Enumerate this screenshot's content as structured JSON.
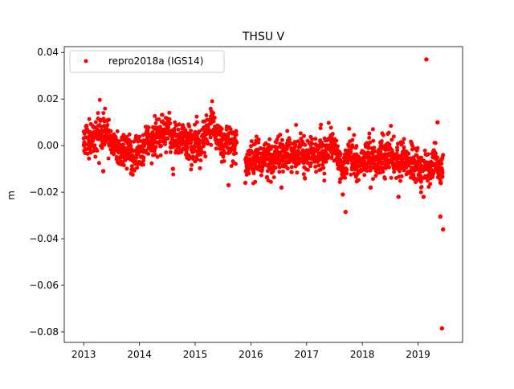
{
  "chart_data": {
    "type": "scatter",
    "title": "THSU V",
    "xlabel": "",
    "ylabel": "m",
    "xlim": [
      2012.65,
      2019.8
    ],
    "ylim": [
      -0.0845,
      0.0425
    ],
    "x_ticks": [
      2013,
      2014,
      2015,
      2016,
      2017,
      2018,
      2019
    ],
    "x_tick_labels": [
      "2013",
      "2014",
      "2015",
      "2016",
      "2017",
      "2018",
      "2019"
    ],
    "y_ticks": [
      0.04,
      0.02,
      0.0,
      -0.02,
      -0.04,
      -0.06,
      -0.08
    ],
    "y_tick_labels": [
      "0.04",
      "0.02",
      "0.00",
      "−0.02",
      "−0.04",
      "−0.06",
      "−0.08"
    ],
    "legend_position": "top-left",
    "grid": false,
    "series": [
      {
        "name": "repro2018a (IGS14)",
        "color": "#ff0000",
        "marker": "circle",
        "x": [
          2013.0,
          2013.05,
          2013.1,
          2013.15,
          2013.2,
          2013.25,
          2013.3,
          2013.35,
          2013.4,
          2013.45,
          2013.5,
          2013.55,
          2013.6,
          2013.65,
          2013.7,
          2013.75,
          2013.8,
          2013.85,
          2013.9,
          2013.95,
          2014.0,
          2014.05,
          2014.1,
          2014.15,
          2014.2,
          2014.25,
          2014.3,
          2014.35,
          2014.4,
          2014.45,
          2014.5,
          2014.55,
          2014.6,
          2014.65,
          2014.7,
          2014.75,
          2014.8,
          2014.85,
          2014.9,
          2014.95,
          2015.0,
          2015.05,
          2015.1,
          2015.15,
          2015.2,
          2015.25,
          2015.3,
          2015.35,
          2015.4,
          2015.45,
          2015.5,
          2015.55,
          2015.6,
          2015.65,
          2015.7,
          2015.75,
          2015.9,
          2015.95,
          2016.0,
          2016.05,
          2016.1,
          2016.15,
          2016.2,
          2016.25,
          2016.3,
          2016.35,
          2016.4,
          2016.45,
          2016.5,
          2016.55,
          2016.6,
          2016.65,
          2016.7,
          2016.75,
          2016.8,
          2016.85,
          2016.9,
          2016.95,
          2017.0,
          2017.05,
          2017.1,
          2017.15,
          2017.2,
          2017.25,
          2017.3,
          2017.35,
          2017.4,
          2017.45,
          2017.5,
          2017.55,
          2017.6,
          2017.65,
          2017.7,
          2017.75,
          2017.8,
          2017.85,
          2017.9,
          2017.95,
          2018.0,
          2018.05,
          2018.1,
          2018.15,
          2018.2,
          2018.25,
          2018.3,
          2018.35,
          2018.4,
          2018.45,
          2018.5,
          2018.55,
          2018.6,
          2018.65,
          2018.7,
          2018.75,
          2018.8,
          2018.85,
          2018.9,
          2018.95,
          2019.0,
          2019.05,
          2019.1,
          2019.15,
          2019.2,
          2019.25,
          2019.3,
          2019.35,
          2019.4,
          2019.45
        ],
        "y": [
          0.002,
          0.004,
          0.001,
          0.005,
          0.003,
          0.006,
          0.008,
          0.004,
          0.007,
          0.003,
          0.001,
          0.002,
          -0.001,
          0.0,
          -0.002,
          -0.003,
          0.001,
          -0.004,
          -0.005,
          -0.002,
          -0.001,
          -0.003,
          0.001,
          0.003,
          -0.001,
          0.002,
          0.004,
          0.003,
          0.006,
          0.005,
          0.007,
          0.004,
          0.002,
          0.003,
          0.001,
          0.002,
          0.003,
          0.001,
          0.0,
          -0.001,
          0.002,
          0.001,
          0.0,
          0.003,
          0.006,
          0.008,
          0.01,
          0.007,
          0.004,
          0.002,
          0.001,
          0.003,
          0.001,
          0.002,
          0.0,
          0.001,
          -0.006,
          -0.008,
          -0.005,
          -0.007,
          -0.004,
          -0.006,
          -0.008,
          -0.003,
          -0.005,
          -0.007,
          -0.009,
          -0.004,
          -0.006,
          -0.003,
          -0.005,
          -0.002,
          -0.004,
          -0.006,
          -0.003,
          -0.005,
          -0.002,
          -0.004,
          -0.006,
          -0.003,
          -0.001,
          -0.004,
          -0.006,
          -0.002,
          -0.005,
          -0.003,
          0.001,
          0.002,
          -0.002,
          -0.004,
          -0.007,
          -0.009,
          -0.006,
          -0.003,
          -0.005,
          -0.004,
          -0.007,
          -0.006,
          -0.008,
          -0.005,
          -0.003,
          -0.006,
          -0.004,
          -0.007,
          -0.005,
          -0.003,
          -0.006,
          -0.004,
          -0.002,
          -0.005,
          -0.006,
          -0.008,
          -0.005,
          -0.004,
          -0.007,
          -0.008,
          -0.006,
          -0.009,
          -0.01,
          -0.012,
          -0.009,
          -0.007,
          -0.01,
          -0.008,
          -0.006,
          -0.009,
          -0.011,
          -0.008
        ]
      }
    ],
    "outliers": {
      "x": [
        2013.35,
        2013.85,
        2014.6,
        2015.6,
        2015.9,
        2016.55,
        2017.65,
        2017.7,
        2018.15,
        2018.65,
        2019.1,
        2019.15,
        2019.35,
        2019.4,
        2019.43,
        2019.45
      ],
      "y": [
        -0.011,
        -0.012,
        -0.01,
        -0.017,
        -0.016,
        -0.018,
        -0.021,
        -0.0285,
        -0.018,
        -0.022,
        -0.022,
        0.037,
        0.01,
        -0.0305,
        -0.0785,
        -0.036
      ]
    }
  }
}
